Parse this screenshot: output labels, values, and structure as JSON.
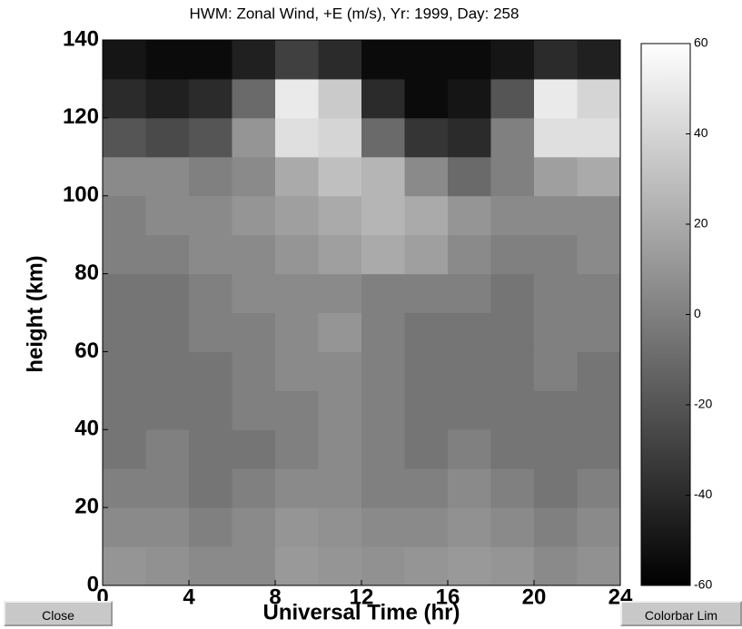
{
  "chart_data": {
    "type": "heatmap",
    "title": "HWM: Zonal Wind, +E (m/s),  Yr: 1999,  Day: 258",
    "xlabel": "Universal Time (hr)",
    "ylabel": "height (km)",
    "x": [
      1,
      3,
      5,
      7,
      9,
      11,
      13,
      15,
      17,
      19,
      21,
      23
    ],
    "y": [
      5,
      15,
      25,
      35,
      45,
      55,
      65,
      75,
      85,
      95,
      105,
      115,
      125,
      135
    ],
    "z": [
      [
        10,
        8,
        5,
        5,
        12,
        10,
        8,
        10,
        12,
        10,
        5,
        8
      ],
      [
        5,
        5,
        0,
        5,
        10,
        8,
        5,
        5,
        8,
        5,
        0,
        5
      ],
      [
        0,
        0,
        -5,
        0,
        5,
        5,
        0,
        0,
        5,
        0,
        -5,
        0
      ],
      [
        -5,
        0,
        -5,
        -5,
        0,
        5,
        0,
        -5,
        0,
        -5,
        -5,
        -5
      ],
      [
        -5,
        -5,
        -5,
        0,
        0,
        5,
        0,
        -5,
        -5,
        -5,
        -5,
        -5
      ],
      [
        -5,
        -5,
        -5,
        0,
        5,
        5,
        0,
        -5,
        -5,
        -5,
        0,
        -5
      ],
      [
        -5,
        -5,
        0,
        0,
        5,
        10,
        0,
        -5,
        -5,
        -5,
        0,
        0
      ],
      [
        -5,
        -5,
        0,
        5,
        5,
        5,
        0,
        0,
        0,
        -5,
        0,
        0
      ],
      [
        0,
        0,
        5,
        5,
        10,
        15,
        20,
        15,
        5,
        0,
        0,
        5
      ],
      [
        0,
        5,
        5,
        10,
        15,
        20,
        25,
        20,
        10,
        5,
        5,
        5
      ],
      [
        5,
        5,
        0,
        5,
        20,
        30,
        25,
        5,
        -10,
        0,
        15,
        20
      ],
      [
        -20,
        -25,
        -20,
        10,
        45,
        40,
        -10,
        -35,
        -40,
        0,
        45,
        45
      ],
      [
        -40,
        -45,
        -40,
        -10,
        50,
        35,
        -40,
        -55,
        -50,
        -20,
        50,
        40
      ],
      [
        -50,
        -55,
        -55,
        -45,
        -30,
        -40,
        -55,
        -55,
        -55,
        -50,
        -40,
        -45
      ]
    ],
    "xlim": [
      0,
      24
    ],
    "xticks": [
      0,
      4,
      8,
      12,
      16,
      20,
      24
    ],
    "ylim": [
      0,
      140
    ],
    "yticks": [
      0,
      20,
      40,
      60,
      80,
      100,
      120,
      140
    ],
    "clim": [
      -60,
      60
    ],
    "cticks": [
      -60,
      -40,
      -20,
      0,
      20,
      40,
      60
    ],
    "colormap": [
      "#000000",
      "#ffffff"
    ]
  },
  "ui": {
    "buttons": [
      "Close",
      "Colorbar Lim"
    ]
  }
}
